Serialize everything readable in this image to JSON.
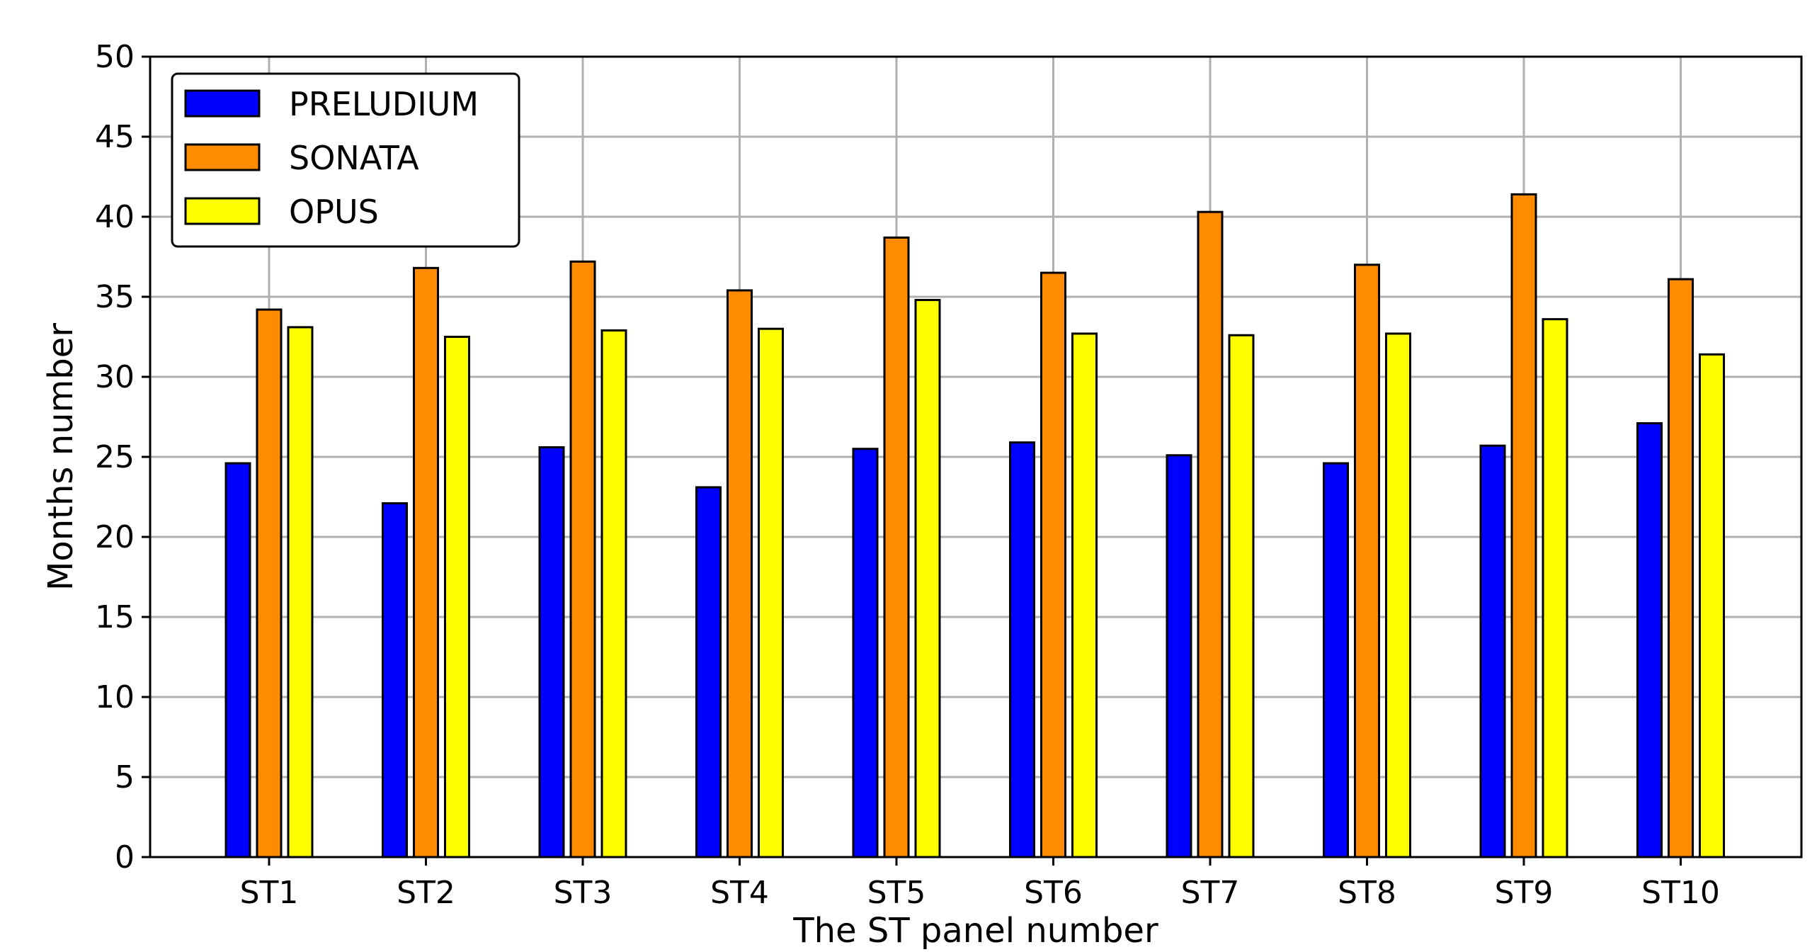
{
  "chart_data": {
    "type": "bar",
    "title": "",
    "xlabel": "The ST panel number",
    "ylabel": "Months number",
    "ylim": [
      0,
      50
    ],
    "yticks": [
      0,
      5,
      10,
      15,
      20,
      25,
      30,
      35,
      40,
      45,
      50
    ],
    "categories": [
      "ST1",
      "ST2",
      "ST3",
      "ST4",
      "ST5",
      "ST6",
      "ST7",
      "ST8",
      "ST9",
      "ST10"
    ],
    "grid": true,
    "legend_position": "top-left",
    "series": [
      {
        "name": "PRELUDIUM",
        "color": "#0000ff",
        "values": [
          24.6,
          22.1,
          25.6,
          23.1,
          25.5,
          25.9,
          25.1,
          24.6,
          25.7,
          27.1
        ]
      },
      {
        "name": "SONATA",
        "color": "#ff8c00",
        "values": [
          34.2,
          36.8,
          37.2,
          35.4,
          38.7,
          36.5,
          40.3,
          37.0,
          41.4,
          36.1
        ]
      },
      {
        "name": "OPUS",
        "color": "#ffff00",
        "values": [
          33.1,
          32.5,
          32.9,
          33.0,
          34.8,
          32.7,
          32.6,
          32.7,
          33.6,
          31.4
        ]
      }
    ]
  }
}
